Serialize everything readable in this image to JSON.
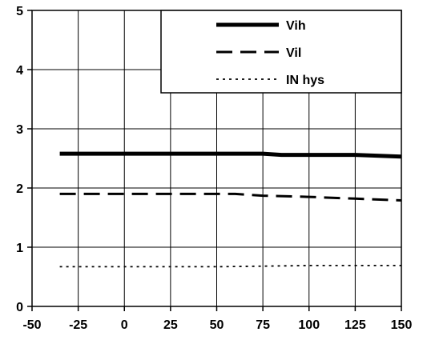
{
  "chart_data": {
    "type": "line",
    "title": "",
    "xlabel": "",
    "ylabel": "",
    "xlim": [
      -50,
      150
    ],
    "ylim": [
      0,
      5
    ],
    "x_ticks": [
      -50,
      -25,
      0,
      25,
      50,
      75,
      100,
      125,
      150
    ],
    "y_ticks": [
      0,
      1,
      2,
      3,
      4,
      5
    ],
    "x_tick_labels": [
      "-50",
      "-25",
      "0",
      "25",
      "50",
      "75",
      "100",
      "125",
      "150"
    ],
    "y_tick_labels": [
      "0",
      "1",
      "2",
      "3",
      "4",
      "5"
    ],
    "grid": "major gridlines on both axes",
    "legend_position": "top-right",
    "series": [
      {
        "name": "Vih",
        "style": "solid-thick",
        "color": "#000000",
        "x": [
          -35,
          -25,
          0,
          25,
          50,
          75,
          85,
          100,
          125,
          150
        ],
        "y": [
          2.58,
          2.58,
          2.58,
          2.58,
          2.58,
          2.58,
          2.56,
          2.56,
          2.56,
          2.53
        ]
      },
      {
        "name": "Vil",
        "style": "dashed",
        "color": "#000000",
        "x": [
          -35,
          -25,
          0,
          25,
          50,
          60,
          75,
          100,
          125,
          150
        ],
        "y": [
          1.9,
          1.9,
          1.9,
          1.9,
          1.9,
          1.9,
          1.87,
          1.85,
          1.82,
          1.79
        ]
      },
      {
        "name": "IN hys",
        "style": "dotted",
        "color": "#000000",
        "x": [
          -35,
          0,
          50,
          75,
          100,
          150
        ],
        "y": [
          0.67,
          0.67,
          0.67,
          0.68,
          0.69,
          0.69
        ]
      }
    ]
  }
}
